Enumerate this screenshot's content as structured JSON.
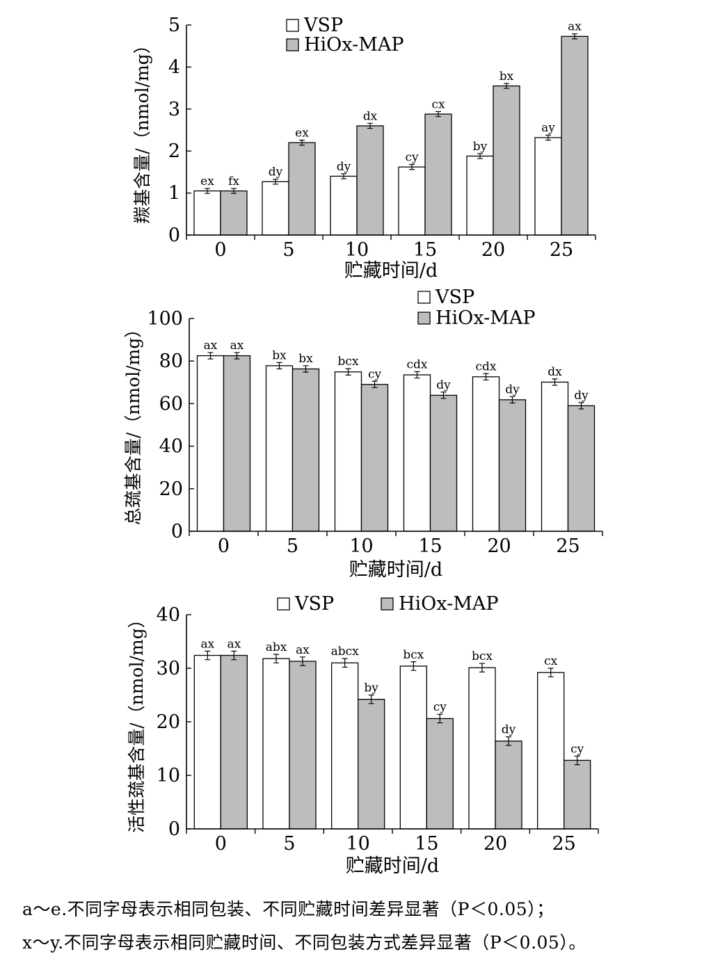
{
  "colors": {
    "vsp": "#ffffff",
    "hiox": "#bdbdbd",
    "stroke": "#000000"
  },
  "chart_data": [
    {
      "type": "bar",
      "ylabel": "羰基含量/（nmol/mg）",
      "xlabel": "贮藏时间/d",
      "categories": [
        "0",
        "5",
        "10",
        "15",
        "20",
        "25"
      ],
      "ylim": [
        0,
        5
      ],
      "yticks": [
        "0",
        "1",
        "2",
        "3",
        "4",
        "5"
      ],
      "legend": "top-left",
      "series": [
        {
          "name": "VSP",
          "values": [
            1.05,
            1.27,
            1.4,
            1.62,
            1.88,
            2.32
          ],
          "err": [
            0.06,
            0.06,
            0.06,
            0.06,
            0.06,
            0.06
          ],
          "labels": [
            "ex",
            "dy",
            "dy",
            "cy",
            "by",
            "ay"
          ]
        },
        {
          "name": "HiOx-MAP",
          "values": [
            1.05,
            2.2,
            2.6,
            2.88,
            3.55,
            4.73
          ],
          "err": [
            0.06,
            0.06,
            0.06,
            0.06,
            0.06,
            0.06
          ],
          "labels": [
            "fx",
            "ex",
            "dx",
            "cx",
            "bx",
            "ax"
          ]
        }
      ]
    },
    {
      "type": "bar",
      "ylabel": "总巯基含量/（nmol/mg）",
      "xlabel": "贮藏时间/d",
      "categories": [
        "0",
        "5",
        "10",
        "15",
        "20",
        "25"
      ],
      "ylim": [
        0,
        100
      ],
      "yticks": [
        "0",
        "20",
        "40",
        "60",
        "80",
        "100"
      ],
      "legend": "top-right",
      "series": [
        {
          "name": "VSP",
          "values": [
            82.5,
            77.8,
            74.9,
            73.5,
            72.6,
            70.1
          ],
          "err": [
            1.5,
            1.5,
            1.5,
            1.5,
            1.5,
            1.5
          ],
          "labels": [
            "ax",
            "bx",
            "bcx",
            "cdx",
            "cdx",
            "dx"
          ]
        },
        {
          "name": "HiOx-MAP",
          "values": [
            82.5,
            76.3,
            69.0,
            63.9,
            61.8,
            59.0
          ],
          "err": [
            1.5,
            1.5,
            1.5,
            1.5,
            1.5,
            1.5
          ],
          "labels": [
            "ax",
            "bx",
            "cy",
            "dy",
            "dy",
            "dy"
          ]
        }
      ]
    },
    {
      "type": "bar",
      "ylabel": "活性巯基含量/（nmol/mg）",
      "xlabel": "贮藏时间/d",
      "categories": [
        "0",
        "5",
        "10",
        "15",
        "20",
        "25"
      ],
      "ylim": [
        0,
        40
      ],
      "yticks": [
        "0",
        "10",
        "20",
        "30",
        "40"
      ],
      "legend": "top",
      "series": [
        {
          "name": "VSP",
          "values": [
            32.4,
            31.8,
            31.0,
            30.4,
            30.1,
            29.2
          ],
          "err": [
            0.8,
            0.8,
            0.8,
            0.8,
            0.8,
            0.8
          ],
          "labels": [
            "ax",
            "abx",
            "abcx",
            "bcx",
            "bcx",
            "cx"
          ]
        },
        {
          "name": "HiOx-MAP",
          "values": [
            32.4,
            31.3,
            24.2,
            20.6,
            16.4,
            12.8
          ],
          "err": [
            0.8,
            0.8,
            0.8,
            0.8,
            0.8,
            0.8
          ],
          "labels": [
            "ax",
            "ax",
            "by",
            "cy",
            "dy",
            "cy"
          ]
        }
      ]
    }
  ],
  "notes": [
    "a～e.不同字母表示相同包装、不同贮藏时间差异显著（P＜0.05）；",
    "x～y.不同字母表示相同贮藏时间、不同包装方式差异显著（P＜0.05）。"
  ]
}
